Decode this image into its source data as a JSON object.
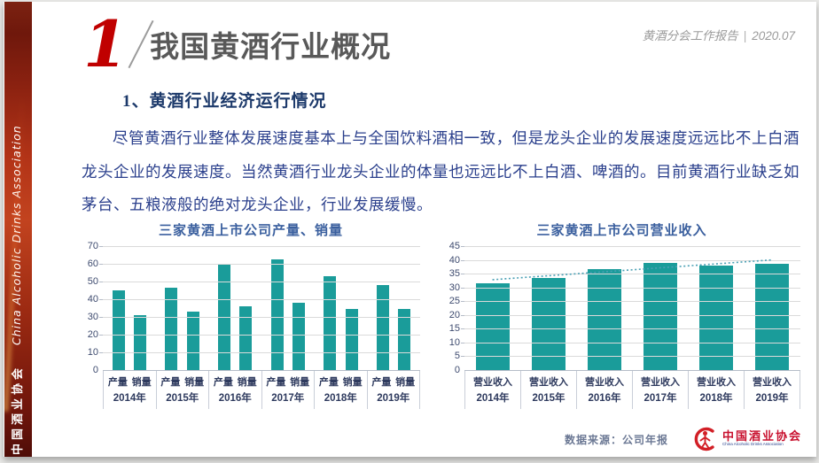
{
  "header": {
    "section_number": "1",
    "title": "我国黄酒行业概况",
    "report_label": "黄酒分会工作报告",
    "separator": "|",
    "report_date": "2020.07"
  },
  "sidebar": {
    "org_cn": "中国酒业协会",
    "org_en": "China Alcoholic Drinks Association"
  },
  "content": {
    "subtitle": "1、黄酒行业经济运行情况",
    "paragraph": "尽管黄酒行业整体发展速度基本上与全国饮料酒相一致，但是龙头企业的发展速度远远比不上白酒龙头企业的发展速度。当然黄酒行业龙头企业的体量也远远比不上白酒、啤酒的。目前黄酒行业缺乏如茅台、五粮液般的绝对龙头企业，行业发展缓慢。"
  },
  "footer": {
    "source": "数据来源：公司年报",
    "logo_cn": "中国酒业协会",
    "logo_en": "China Alcoholic Drinks Association"
  },
  "colors": {
    "bar_teal": "#1a9c9a",
    "accent_red": "#c00000",
    "title_gray": "#595959",
    "chart_title_blue": "#3a5f9e",
    "body_text_blue": "#2a3f8c",
    "trendline": "#4aa0b4",
    "sidebar_red": "#a12c13"
  },
  "chart_data": [
    {
      "type": "bar",
      "title": "三家黄酒上市公司产量、销量",
      "categories": [
        "2014年",
        "2015年",
        "2016年",
        "2017年",
        "2018年",
        "2019年"
      ],
      "series": [
        {
          "name": "产量",
          "values": [
            45,
            46.5,
            60,
            62.5,
            53,
            48
          ]
        },
        {
          "name": "销量",
          "values": [
            31,
            33,
            36,
            38,
            34.5,
            34.5
          ]
        }
      ],
      "ylim": [
        0,
        70
      ],
      "ystep": 10,
      "grid": true,
      "legend": "none",
      "bar_color": "#1a9c9a"
    },
    {
      "type": "bar",
      "title": "三家黄酒上市公司营业收入",
      "categories": [
        "2014年",
        "2015年",
        "2016年",
        "2017年",
        "2018年",
        "2019年"
      ],
      "series": [
        {
          "name": "营业收入",
          "values": [
            31.5,
            33.5,
            36.5,
            39,
            38,
            38.5
          ]
        }
      ],
      "trendline": {
        "start": 32.8,
        "end": 40,
        "style": "dotted"
      },
      "ylim": [
        0,
        45
      ],
      "ystep": 5,
      "grid": true,
      "legend": "none",
      "bar_color": "#1a9c9a"
    }
  ]
}
